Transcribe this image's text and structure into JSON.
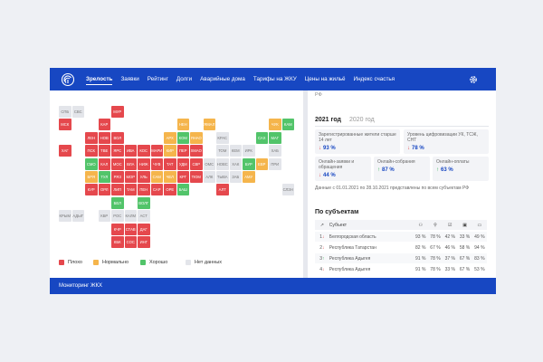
{
  "nav": {
    "items": [
      "Зрелость",
      "Заявки",
      "Рейтинг",
      "Долги",
      "Аварийные дома",
      "Тарифы на ЖКУ",
      "Цены на жильё",
      "Индекс счастья"
    ]
  },
  "region": "РФ",
  "years": [
    "2021 год",
    "2020 год"
  ],
  "cards": [
    {
      "label": "Зарегистрированные жители старше 14 лет",
      "arrow": "↓",
      "value": "93 %"
    },
    {
      "label": "Уровень цифровизации УК, ТСЖ, СНТ",
      "arrow": "↓",
      "value": "78 %"
    },
    {
      "label": "Онлайн-заявки и обращения",
      "arrow": "↓",
      "value": "44 %"
    },
    {
      "label": "Онлайн-собрания",
      "arrow": "↑",
      "value": "87 %"
    },
    {
      "label": "Онлайн-оплаты",
      "arrow": "↑",
      "value": "63 %"
    }
  ],
  "note": "Данные с 01.01.2021 по 28.10.2021 представлены по всем субъектам РФ",
  "section_title": "По субъектам",
  "table": {
    "header": "Субъект",
    "rows": [
      {
        "rank": "1",
        "arrow": "↓",
        "name": "Белгородская область",
        "cells": [
          "93 %",
          "78 %",
          "42 %",
          "33 %",
          "49 %"
        ]
      },
      {
        "rank": "2",
        "arrow": "↓",
        "name": "Республика Татарстан",
        "cells": [
          "82 %",
          "67 %",
          "46 %",
          "58 %",
          "94 %"
        ]
      },
      {
        "rank": "3",
        "arrow": "↑",
        "name": "Республика Адыгея",
        "cells": [
          "91 %",
          "78 %",
          "37 %",
          "67 %",
          "83 %"
        ]
      },
      {
        "rank": "4",
        "arrow": "↓",
        "name": "Республика Адыгея",
        "cells": [
          "91 %",
          "78 %",
          "33 %",
          "67 %",
          "53 %"
        ]
      }
    ]
  },
  "map": {
    "rows": [
      [
        {
          "label": "СПБ",
          "color": "#e3e5ea"
        },
        {
          "label": "СВС",
          "color": "#e3e5ea"
        },
        null,
        null,
        {
          "label": "МУР",
          "color": "#e5484d"
        }
      ],
      [
        {
          "label": "МСК",
          "color": "#e5484d"
        },
        null,
        null,
        {
          "label": "КАР",
          "color": "#e5484d"
        },
        null,
        null,
        null,
        null,
        null,
        {
          "label": "НЕН",
          "color": "#f5b54c"
        },
        null,
        {
          "label": "ЯМАЛ",
          "color": "#f5b54c"
        },
        null,
        null,
        null,
        null,
        {
          "label": "ЧУК",
          "color": "#f5b54c"
        },
        {
          "label": "КАМ",
          "color": "#52c46a"
        }
      ],
      [
        null,
        null,
        {
          "label": "ЛЕН",
          "color": "#e5484d"
        },
        {
          "label": "НОВ",
          "color": "#e5484d"
        },
        {
          "label": "ВОЛ",
          "color": "#e5484d"
        },
        null,
        null,
        null,
        {
          "label": "АРХ",
          "color": "#f5b54c"
        },
        {
          "label": "КОМ",
          "color": "#52c46a"
        },
        {
          "label": "ЯНАО",
          "color": "#f5b54c"
        },
        null,
        {
          "label": "КРАС",
          "color": "#e3e5ea"
        },
        null,
        null,
        {
          "label": "САХ",
          "color": "#52c46a"
        },
        {
          "label": "МАГ",
          "color": "#52c46a"
        }
      ],
      [
        {
          "label": "ХАГ",
          "color": "#e5484d"
        },
        null,
        {
          "label": "ПСК",
          "color": "#e5484d"
        },
        {
          "label": "ТВЕ",
          "color": "#e5484d"
        },
        {
          "label": "ЯРС",
          "color": "#e5484d"
        },
        {
          "label": "ИВА",
          "color": "#e5484d"
        },
        {
          "label": "КОС",
          "color": "#e5484d"
        },
        {
          "label": "МАРИ",
          "color": "#e5484d"
        },
        {
          "label": "КИР",
          "color": "#f5b54c"
        },
        {
          "label": "ПЕР",
          "color": "#e5484d"
        },
        {
          "label": "ХМАО",
          "color": "#e5484d"
        },
        null,
        {
          "label": "ТОМ",
          "color": "#e3e5ea"
        },
        {
          "label": "КЕМ",
          "color": "#e3e5ea"
        },
        {
          "label": "ИРК",
          "color": "#e3e5ea"
        },
        null,
        {
          "label": "ХАБ",
          "color": "#e3e5ea"
        }
      ],
      [
        null,
        null,
        {
          "label": "СМО",
          "color": "#52c46a"
        },
        {
          "label": "КАЛ",
          "color": "#e5484d"
        },
        {
          "label": "МОС",
          "color": "#e5484d"
        },
        {
          "label": "ВЛА",
          "color": "#e5484d"
        },
        {
          "label": "НИЖ",
          "color": "#e5484d"
        },
        {
          "label": "ЧУВ",
          "color": "#e5484d"
        },
        {
          "label": "ТАТ",
          "color": "#e5484d"
        },
        {
          "label": "УДМ",
          "color": "#e5484d"
        },
        {
          "label": "СВР",
          "color": "#e5484d"
        },
        {
          "label": "ОМС",
          "color": "#e3e5ea"
        },
        {
          "label": "НОВС",
          "color": "#e3e5ea"
        },
        {
          "label": "ХАК",
          "color": "#e3e5ea"
        },
        {
          "label": "БУР",
          "color": "#52c46a"
        },
        {
          "label": "ЕВР",
          "color": "#f5b54c"
        },
        {
          "label": "ПРИ",
          "color": "#e3e5ea"
        }
      ],
      [
        null,
        null,
        {
          "label": "БРЯ",
          "color": "#f5b54c"
        },
        {
          "label": "ТУЛ",
          "color": "#52c46a"
        },
        {
          "label": "РЯЗ",
          "color": "#e5484d"
        },
        {
          "label": "МОР",
          "color": "#e5484d"
        },
        {
          "label": "УЛЬ",
          "color": "#e5484d"
        },
        {
          "label": "САМ",
          "color": "#f5b54c"
        },
        {
          "label": "ЧЕЛ",
          "color": "#f5b54c"
        },
        {
          "label": "КРГ",
          "color": "#e5484d"
        },
        {
          "label": "ТЮМ",
          "color": "#e5484d"
        },
        {
          "label": "АЛК",
          "color": "#e3e5ea"
        },
        {
          "label": "ТЫВА",
          "color": "#e3e5ea"
        },
        {
          "label": "ЗАБ",
          "color": "#e3e5ea"
        },
        {
          "label": "АМУ",
          "color": "#f5b54c"
        }
      ],
      [
        null,
        null,
        {
          "label": "КУР",
          "color": "#e5484d"
        },
        {
          "label": "ОРЛ",
          "color": "#e5484d"
        },
        {
          "label": "ЛИП",
          "color": "#e5484d"
        },
        {
          "label": "ТАМ",
          "color": "#e5484d"
        },
        {
          "label": "ПЕН",
          "color": "#e5484d"
        },
        {
          "label": "САР",
          "color": "#e5484d"
        },
        {
          "label": "ОРЕ",
          "color": "#e5484d"
        },
        {
          "label": "БАШ",
          "color": "#52c46a"
        },
        null,
        null,
        {
          "label": "АЛТ",
          "color": "#e5484d"
        },
        null,
        null,
        null,
        null,
        {
          "label": "СЛЗН",
          "color": "#e3e5ea"
        }
      ],
      [
        null,
        null,
        null,
        null,
        {
          "label": "БЕЛ",
          "color": "#52c46a"
        },
        null,
        {
          "label": "ВОЛГ",
          "color": "#52c46a"
        }
      ],
      [
        {
          "label": "КРЫМ",
          "color": "#e3e5ea"
        },
        {
          "label": "АДЫГ",
          "color": "#e3e5ea"
        },
        null,
        {
          "label": "КБР",
          "color": "#e3e5ea"
        },
        {
          "label": "РОС",
          "color": "#e3e5ea"
        },
        {
          "label": "КАЛМ",
          "color": "#e3e5ea"
        },
        {
          "label": "АСТ",
          "color": "#e3e5ea"
        }
      ],
      [
        null,
        null,
        null,
        null,
        {
          "label": "КЧР",
          "color": "#e5484d"
        },
        {
          "label": "СТАВ",
          "color": "#e5484d"
        },
        {
          "label": "ДАГ",
          "color": "#e5484d"
        }
      ],
      [
        null,
        null,
        null,
        null,
        {
          "label": "КБК",
          "color": "#e5484d"
        },
        {
          "label": "СОС",
          "color": "#e5484d"
        },
        {
          "label": "ИНГ",
          "color": "#e5484d"
        }
      ]
    ]
  },
  "legend": [
    {
      "label": "Плохо",
      "color": "#e5484d"
    },
    {
      "label": "Нормально",
      "color": "#f5b54c"
    },
    {
      "label": "Хорошо",
      "color": "#52c46a"
    },
    {
      "label": "Нет данных",
      "color": "#e3e5ea"
    }
  ],
  "footer": "Мониторинг ЖКХ"
}
